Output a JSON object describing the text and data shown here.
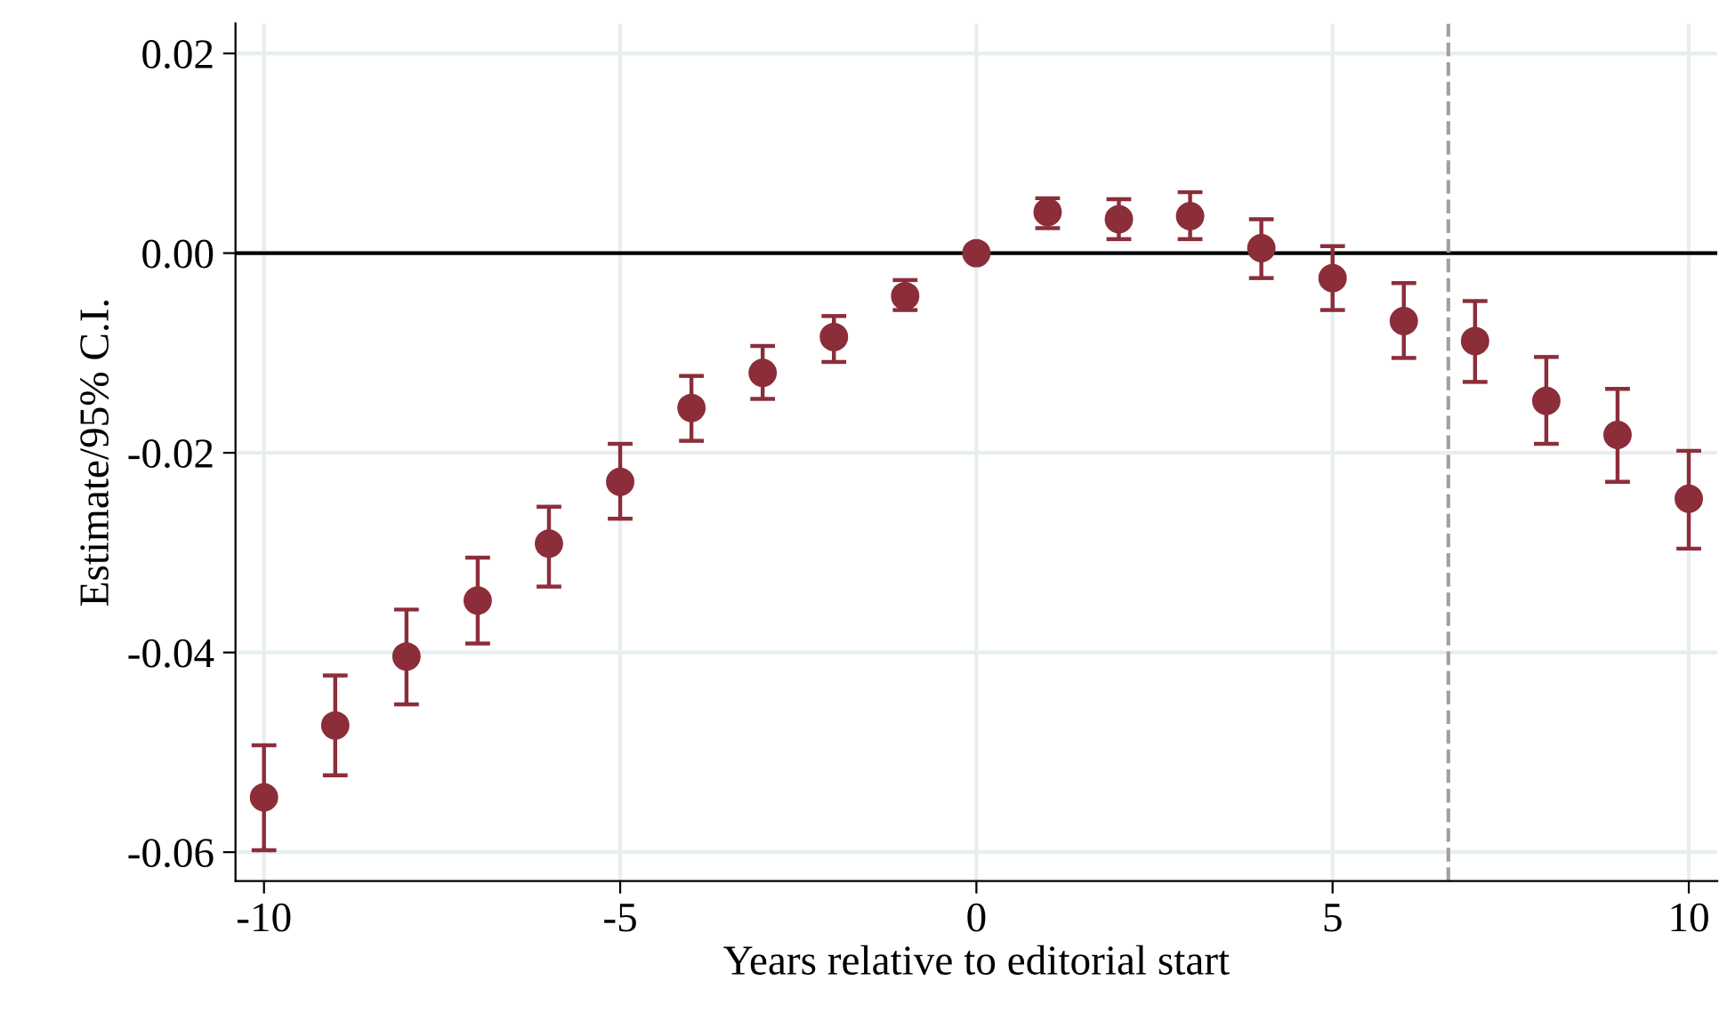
{
  "chart_data": {
    "type": "scatter",
    "xlabel": "Years relative to editorial start",
    "ylabel": "Estimate/95% C.I.",
    "x": [
      -10,
      -9,
      -8,
      -7,
      -6,
      -5,
      -4,
      -3,
      -2,
      -1,
      0,
      1,
      2,
      3,
      4,
      5,
      6,
      7,
      8,
      9,
      10
    ],
    "series": [
      {
        "color": "#8b2e3a",
        "values": [
          -0.0545,
          -0.0473,
          -0.0404,
          -0.0348,
          -0.0291,
          -0.0229,
          -0.0155,
          -0.012,
          -0.0084,
          -0.0043,
          0,
          0.0041,
          0.0034,
          0.0037,
          0.0005,
          -0.0025,
          -0.0068,
          -0.0088,
          -0.0148,
          -0.0182,
          -0.0246
        ],
        "errors": [
          [
            -0.0598,
            -0.0493
          ],
          [
            -0.0523,
            -0.0423
          ],
          [
            -0.0452,
            -0.0357
          ],
          [
            -0.0391,
            -0.0305
          ],
          [
            -0.0334,
            -0.0254
          ],
          [
            -0.0266,
            -0.0191
          ],
          [
            -0.0188,
            -0.0123
          ],
          [
            -0.0146,
            -0.0093
          ],
          [
            -0.0109,
            -0.0063
          ],
          [
            -0.0057,
            -0.0027
          ],
          null,
          [
            0.0025,
            0.0055
          ],
          [
            0.0014,
            0.0054
          ],
          [
            0.0014,
            0.0061
          ],
          [
            -0.0025,
            0.0034
          ],
          [
            -0.0057,
            0.0007
          ],
          [
            -0.0105,
            -0.003
          ],
          [
            -0.0129,
            -0.0048
          ],
          [
            -0.0191,
            -0.0104
          ],
          [
            -0.0229,
            -0.0136
          ],
          [
            -0.0296,
            -0.0198
          ]
        ]
      }
    ],
    "marker": "circle",
    "grid": true,
    "legend": false,
    "xlim": [
      -10.4,
      10.4
    ],
    "xticks": [
      -10,
      -5,
      0,
      5,
      10
    ],
    "ylim": [
      -0.0629,
      0.023
    ],
    "yticks": [
      {
        "value": 0.02,
        "label": "0.02"
      },
      {
        "value": 0,
        "label": "0.00"
      },
      {
        "value": -0.02,
        "label": "-0.02"
      },
      {
        "value": -0.04,
        "label": "-0.04"
      },
      {
        "value": -0.06,
        "label": "-0.06"
      }
    ],
    "ref_lines": [
      {
        "axis": "y",
        "value": 0,
        "color": "#000000",
        "line_style": "solid"
      },
      {
        "axis": "x",
        "value": 6.625,
        "color": "#a0a0a0",
        "line_style": "dashed"
      }
    ]
  }
}
